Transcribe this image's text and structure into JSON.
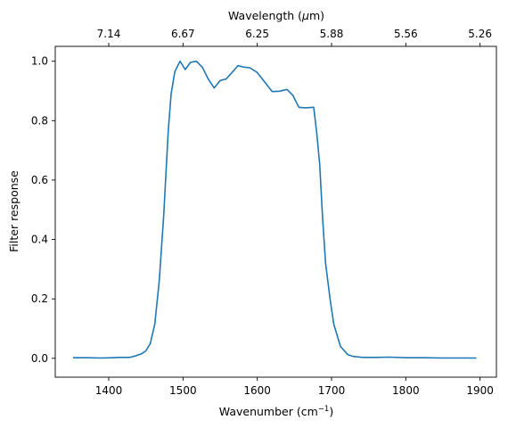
{
  "chart_data": {
    "type": "line",
    "title": "",
    "xlabel": "Wavenumber (cm",
    "xlabel_sup": "−1",
    "xlabel_suffix": ")",
    "ylabel": "Filter response",
    "top_xlabel": "Wavelength (",
    "top_xlabel_mu": "μ",
    "top_xlabel_suffix": "m)",
    "xlim": [
      1328,
      1922
    ],
    "ylim": [
      -0.0635,
      1.05
    ],
    "x_ticks": [
      1400,
      1500,
      1600,
      1700,
      1800,
      1900
    ],
    "x_tick_labels": [
      "1400",
      "1500",
      "1600",
      "1700",
      "1800",
      "1900"
    ],
    "y_ticks": [
      0.0,
      0.2,
      0.4,
      0.6,
      0.8,
      1.0
    ],
    "y_tick_labels": [
      "0.0",
      "0.2",
      "0.4",
      "0.6",
      "0.8",
      "1.0"
    ],
    "top_ticks": [
      1400,
      1500,
      1600,
      1700,
      1800,
      1900
    ],
    "top_tick_labels": [
      "7.14",
      "6.67",
      "6.25",
      "5.88",
      "5.56",
      "5.26"
    ],
    "line_color": "#1f77b4",
    "grid": false,
    "series": [
      {
        "values": [
          [
            1352,
            0.002
          ],
          [
            1370,
            0.002
          ],
          [
            1390,
            0.001
          ],
          [
            1405,
            0.002
          ],
          [
            1415,
            0.003
          ],
          [
            1428,
            0.003
          ],
          [
            1436,
            0.008
          ],
          [
            1444,
            0.015
          ],
          [
            1450,
            0.025
          ],
          [
            1456,
            0.05
          ],
          [
            1462,
            0.115
          ],
          [
            1468,
            0.26
          ],
          [
            1474,
            0.48
          ],
          [
            1480,
            0.76
          ],
          [
            1484,
            0.89
          ],
          [
            1489,
            0.965
          ],
          [
            1496,
            1.0
          ],
          [
            1503,
            0.972
          ],
          [
            1510,
            0.996
          ],
          [
            1518,
            1.0
          ],
          [
            1526,
            0.98
          ],
          [
            1534,
            0.94
          ],
          [
            1542,
            0.91
          ],
          [
            1550,
            0.935
          ],
          [
            1558,
            0.94
          ],
          [
            1566,
            0.962
          ],
          [
            1574,
            0.985
          ],
          [
            1582,
            0.98
          ],
          [
            1590,
            0.978
          ],
          [
            1600,
            0.962
          ],
          [
            1610,
            0.93
          ],
          [
            1620,
            0.898
          ],
          [
            1630,
            0.899
          ],
          [
            1640,
            0.905
          ],
          [
            1648,
            0.885
          ],
          [
            1656,
            0.845
          ],
          [
            1664,
            0.843
          ],
          [
            1670,
            0.844
          ],
          [
            1676,
            0.845
          ],
          [
            1680,
            0.76
          ],
          [
            1684,
            0.655
          ],
          [
            1688,
            0.47
          ],
          [
            1692,
            0.32
          ],
          [
            1698,
            0.2
          ],
          [
            1703,
            0.115
          ],
          [
            1712,
            0.04
          ],
          [
            1722,
            0.012
          ],
          [
            1730,
            0.006
          ],
          [
            1742,
            0.003
          ],
          [
            1760,
            0.003
          ],
          [
            1778,
            0.004
          ],
          [
            1800,
            0.002
          ],
          [
            1825,
            0.002
          ],
          [
            1850,
            0.001
          ],
          [
            1872,
            0.001
          ],
          [
            1895,
            0.001
          ]
        ]
      }
    ]
  }
}
